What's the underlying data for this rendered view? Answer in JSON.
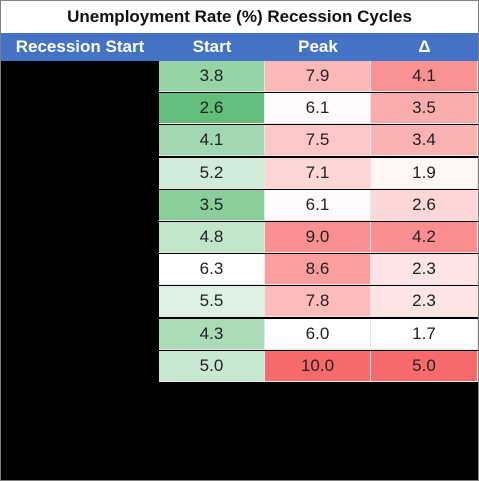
{
  "chart_data": {
    "type": "table",
    "title": "Unemployment Rate (%) Recession Cycles",
    "columns": [
      "Recession Start",
      "Start",
      "Peak",
      "Δ"
    ],
    "rows": [
      {
        "recession_start": "",
        "start": 3.8,
        "peak": 7.9,
        "delta": 4.1
      },
      {
        "recession_start": "",
        "start": 2.6,
        "peak": 6.1,
        "delta": 3.5
      },
      {
        "recession_start": "",
        "start": 4.1,
        "peak": 7.5,
        "delta": 3.4
      },
      {
        "recession_start": "",
        "start": 5.2,
        "peak": 7.1,
        "delta": 1.9
      },
      {
        "recession_start": "",
        "start": 3.5,
        "peak": 6.1,
        "delta": 2.6
      },
      {
        "recession_start": "",
        "start": 4.8,
        "peak": 9.0,
        "delta": 4.2
      },
      {
        "recession_start": "",
        "start": 6.3,
        "peak": 8.6,
        "delta": 2.3
      },
      {
        "recession_start": "",
        "start": 5.5,
        "peak": 7.8,
        "delta": 2.3
      },
      {
        "recession_start": "",
        "start": 4.3,
        "peak": 6.0,
        "delta": 1.7
      },
      {
        "recession_start": "",
        "start": 5.0,
        "peak": 10.0,
        "delta": 5.0
      }
    ],
    "color_scale": {
      "start": {
        "low": "#63be7b",
        "high": "#ffffff"
      },
      "peak": {
        "low": "#ffffff",
        "high": "#f8696b"
      },
      "delta": {
        "low": "#ffffff",
        "high": "#f8696b"
      }
    },
    "colors": {
      "header_bg": "#4472c4",
      "header_text": "#ffffff",
      "background": "#000000"
    }
  }
}
